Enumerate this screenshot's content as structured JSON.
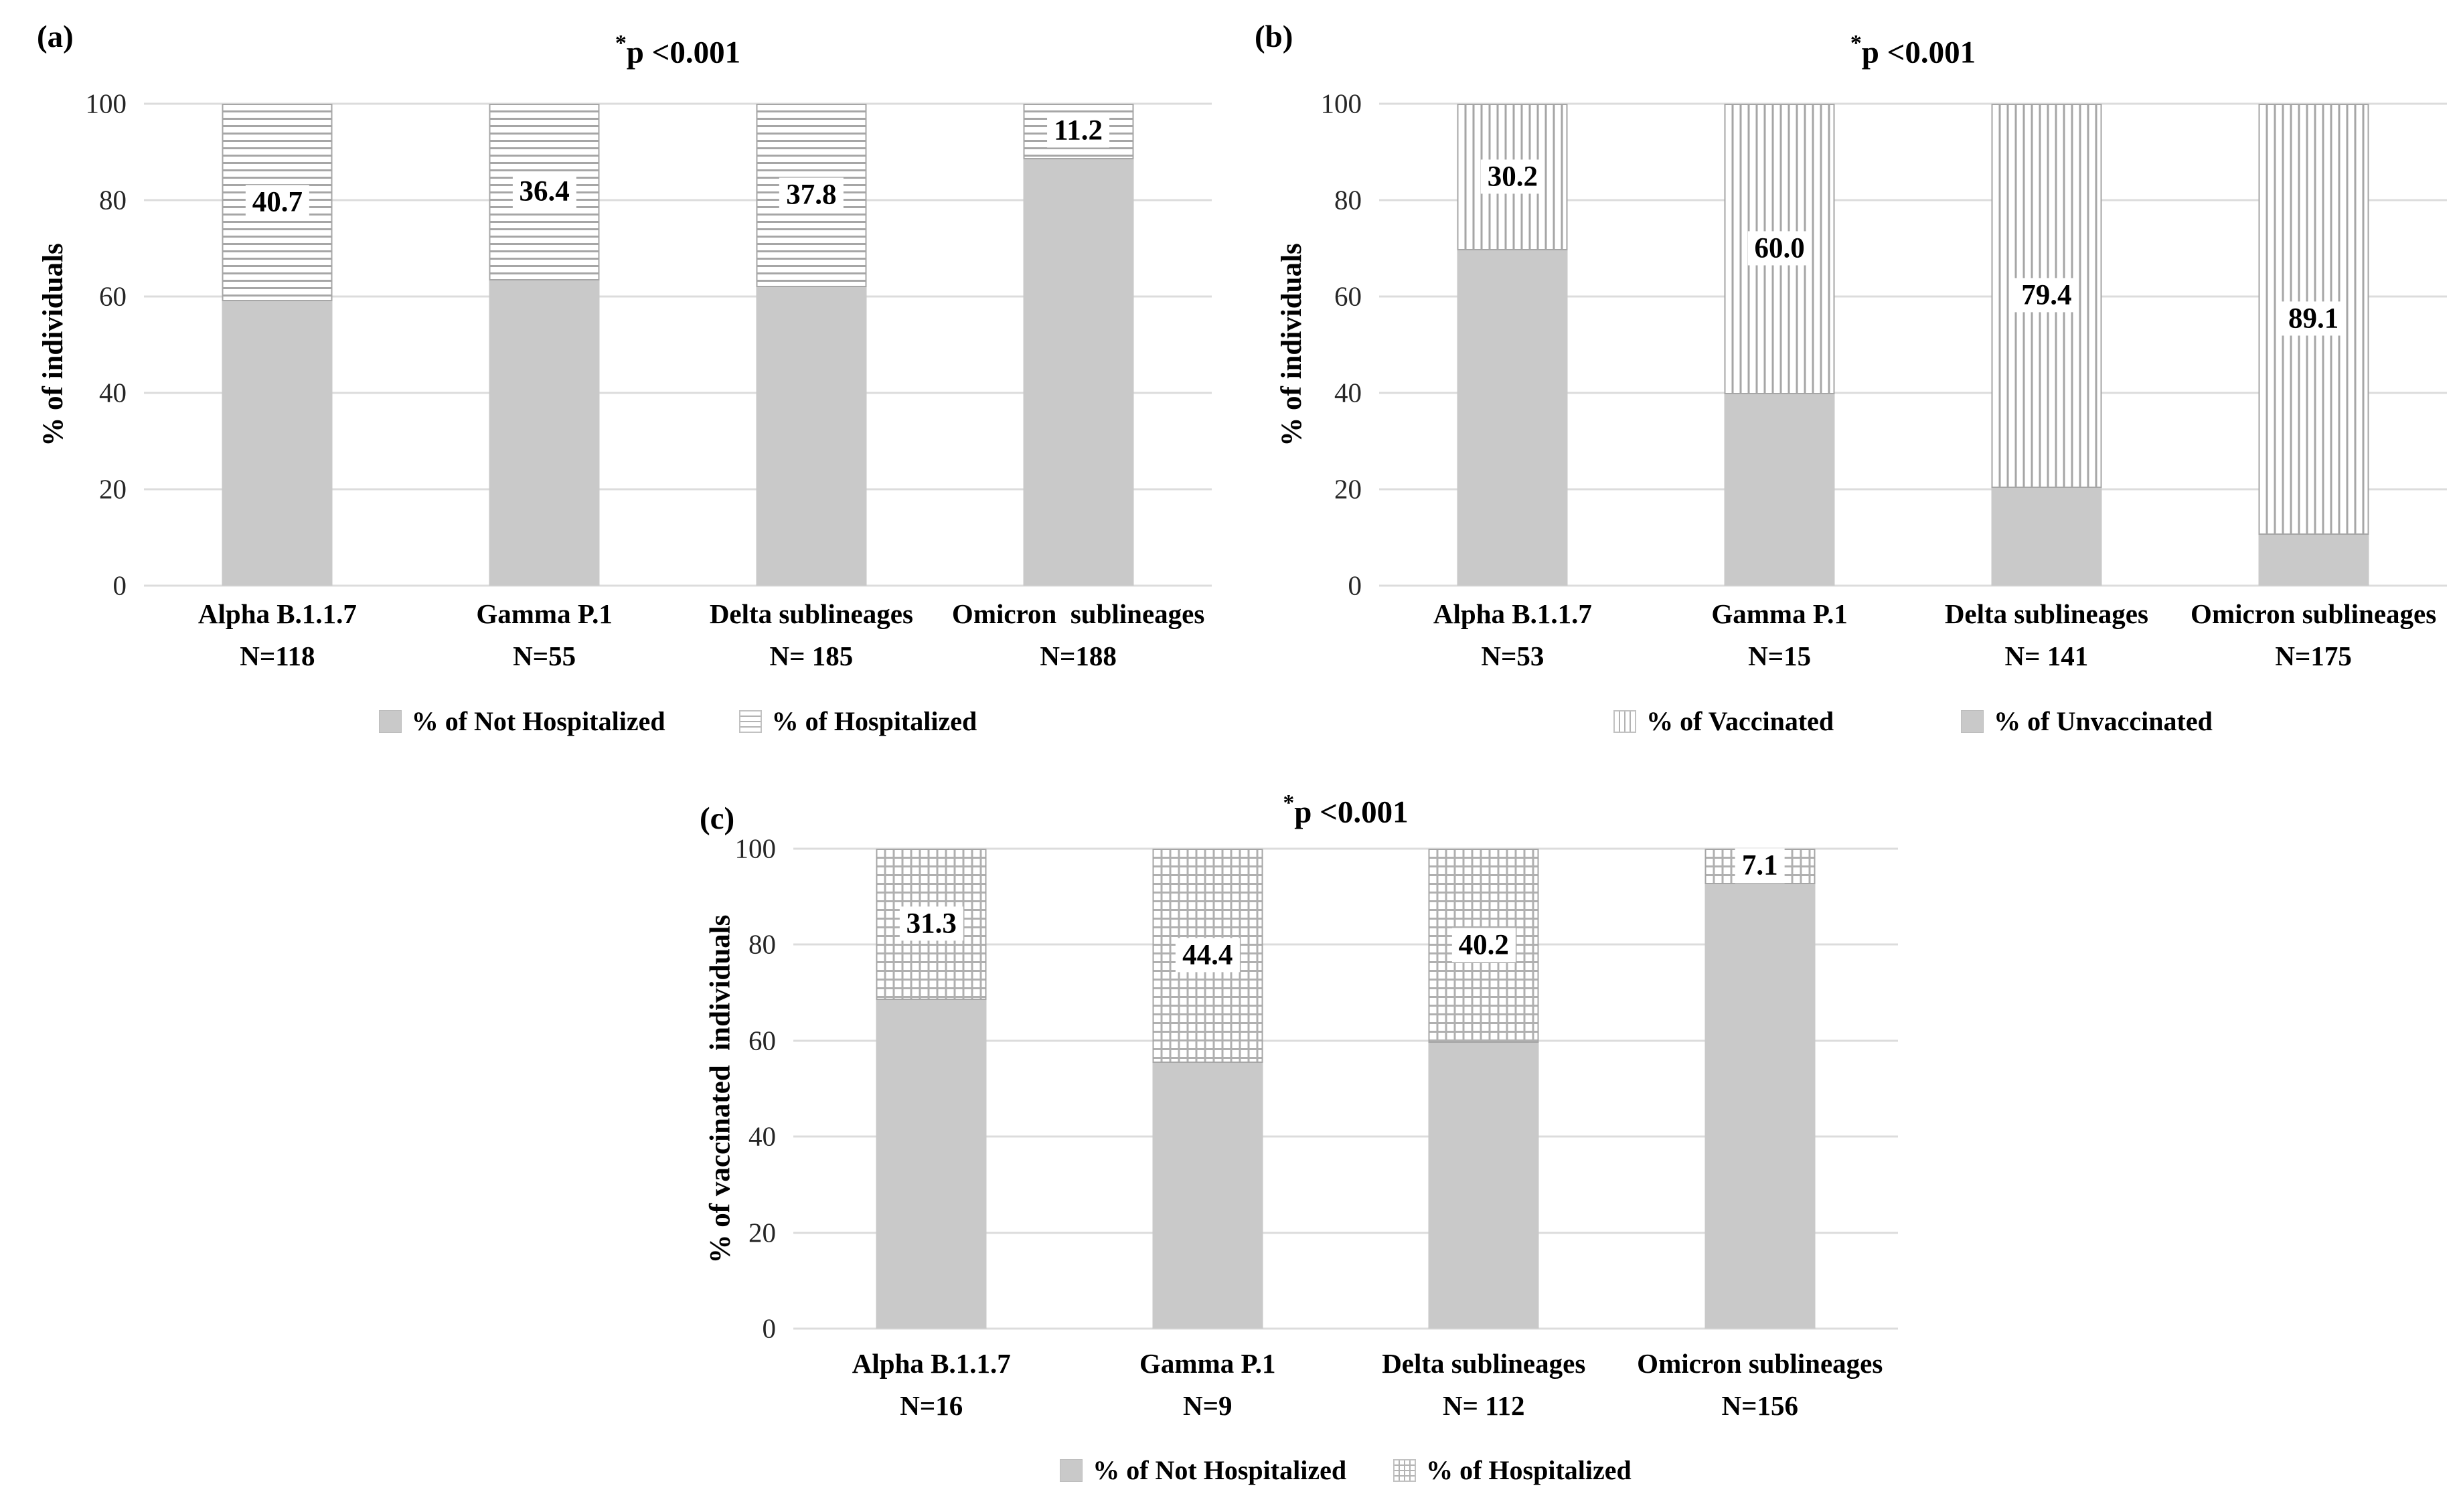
{
  "chart_data": [
    {
      "type": "bar",
      "stacked": true,
      "panel_label": "(a)",
      "title_star": "*",
      "title_text": "p <0.001",
      "ylabel": "% of individuals",
      "ylim": [
        0,
        100
      ],
      "y_ticks": [
        0,
        20,
        40,
        60,
        80,
        100
      ],
      "grid": true,
      "categories": [
        {
          "name": "Alpha B.1.1.7",
          "n": "N=118"
        },
        {
          "name": "Gamma P.1",
          "n": "N=55"
        },
        {
          "name": "Delta sublineages",
          "n": "N= 185"
        },
        {
          "name": "Omicron  sublineages",
          "n": "N=188"
        }
      ],
      "series": [
        {
          "name": "% of Not Hospitalized",
          "pattern": "solid",
          "values": [
            59.3,
            63.6,
            62.2,
            88.8
          ]
        },
        {
          "name": "% of Hospitalized",
          "pattern": "hlines",
          "values": [
            40.7,
            36.4,
            37.8,
            11.2
          ],
          "data_labels": [
            "40.7",
            "36.4",
            "37.8",
            "11.2"
          ]
        }
      ],
      "legend": [
        {
          "label": "% of Not Hospitalized",
          "pattern": "solid"
        },
        {
          "label": "% of Hospitalized",
          "pattern": "hlines"
        }
      ],
      "legend_position": "bottom"
    },
    {
      "type": "bar",
      "stacked": true,
      "panel_label": "(b)",
      "title_star": "*",
      "title_text": "p <0.001",
      "ylabel": "% of individuals",
      "ylim": [
        0,
        100
      ],
      "y_ticks": [
        0,
        20,
        40,
        60,
        80,
        100
      ],
      "grid": true,
      "categories": [
        {
          "name": "Alpha B.1.1.7",
          "n": "N=53"
        },
        {
          "name": "Gamma P.1",
          "n": "N=15"
        },
        {
          "name": "Delta sublineages",
          "n": "N= 141"
        },
        {
          "name": "Omicron sublineages",
          "n": "N=175"
        }
      ],
      "series": [
        {
          "name": "% of Unvaccinated",
          "pattern": "solid",
          "values": [
            69.8,
            40.0,
            20.6,
            10.9
          ]
        },
        {
          "name": "% of Vaccinated",
          "pattern": "vlines",
          "values": [
            30.2,
            60.0,
            79.4,
            89.1
          ],
          "data_labels": [
            "30.2",
            "60.0",
            "79.4",
            "89.1"
          ]
        }
      ],
      "legend": [
        {
          "label": "% of Vaccinated",
          "pattern": "vlines"
        },
        {
          "label": "% of Unvaccinated",
          "pattern": "solid"
        }
      ],
      "legend_position": "bottom"
    },
    {
      "type": "bar",
      "stacked": true,
      "panel_label": "(c)",
      "title_star": "*",
      "title_text": "p <0.001",
      "ylabel": "% of vaccinated  individuals",
      "ylim": [
        0,
        100
      ],
      "y_ticks": [
        0,
        20,
        40,
        60,
        80,
        100
      ],
      "grid": true,
      "categories": [
        {
          "name": "Alpha B.1.1.7",
          "n": "N=16"
        },
        {
          "name": "Gamma P.1",
          "n": "N=9"
        },
        {
          "name": "Delta sublineages",
          "n": "N= 112"
        },
        {
          "name": "Omicron sublineages",
          "n": "N=156"
        }
      ],
      "series": [
        {
          "name": "% of Not Hospitalized",
          "pattern": "solid",
          "values": [
            68.7,
            55.6,
            59.8,
            92.9
          ]
        },
        {
          "name": "% of Hospitalized",
          "pattern": "cross",
          "values": [
            31.3,
            44.4,
            40.2,
            7.1
          ],
          "data_labels": [
            "31.3",
            "44.4",
            "40.2",
            "7.1"
          ]
        }
      ],
      "legend": [
        {
          "label": "% of Not Hospitalized",
          "pattern": "solid"
        },
        {
          "label": "% of Hospitalized",
          "pattern": "cross"
        }
      ],
      "legend_position": "bottom"
    }
  ],
  "colors": {
    "solid_fill": "#c9c9c9",
    "bar_border": "#a6a6a6",
    "gridline": "#dcdcdc",
    "text": "#000000",
    "background": "#ffffff"
  }
}
